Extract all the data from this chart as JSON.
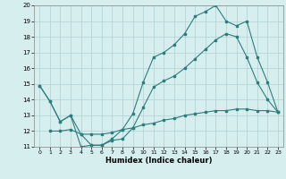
{
  "xlabel": "Humidex (Indice chaleur)",
  "xlim": [
    -0.5,
    23.5
  ],
  "ylim": [
    11,
    20
  ],
  "yticks": [
    11,
    12,
    13,
    14,
    15,
    16,
    17,
    18,
    19,
    20
  ],
  "xticks": [
    0,
    1,
    2,
    3,
    4,
    5,
    6,
    7,
    8,
    9,
    10,
    11,
    12,
    13,
    14,
    15,
    16,
    17,
    18,
    19,
    20,
    21,
    22,
    23
  ],
  "bg_color": "#d6eeee",
  "grid_color": "#b0d0d0",
  "line_color": "#2e7d7d",
  "line1_x": [
    0,
    1,
    2,
    3,
    4,
    5,
    6,
    7,
    8,
    9,
    10,
    11,
    12,
    13,
    14,
    15,
    16,
    17,
    18,
    19,
    20,
    21,
    22,
    23
  ],
  "line1_y": [
    14.9,
    13.9,
    12.6,
    13.0,
    11.8,
    11.1,
    11.1,
    11.5,
    12.1,
    13.1,
    15.1,
    16.7,
    17.0,
    17.5,
    18.2,
    19.3,
    19.6,
    20.0,
    19.0,
    18.7,
    19.0,
    16.7,
    15.1,
    13.2
  ],
  "line2_x": [
    0,
    1,
    2,
    3,
    4,
    5,
    6,
    7,
    8,
    9,
    10,
    11,
    12,
    13,
    14,
    15,
    16,
    17,
    18,
    19,
    20,
    21,
    22,
    23
  ],
  "line2_y": [
    14.9,
    13.9,
    12.6,
    13.0,
    11.0,
    11.1,
    11.1,
    11.4,
    11.5,
    12.2,
    13.5,
    14.8,
    15.2,
    15.5,
    16.0,
    16.6,
    17.2,
    17.8,
    18.2,
    18.0,
    16.7,
    15.1,
    14.0,
    13.2
  ],
  "line3_x": [
    1,
    2,
    3,
    4,
    5,
    6,
    7,
    8,
    9,
    10,
    11,
    12,
    13,
    14,
    15,
    16,
    17,
    18,
    19,
    20,
    21,
    22,
    23
  ],
  "line3_y": [
    12.0,
    12.0,
    12.1,
    11.8,
    11.8,
    11.8,
    11.9,
    12.1,
    12.2,
    12.4,
    12.5,
    12.7,
    12.8,
    13.0,
    13.1,
    13.2,
    13.3,
    13.3,
    13.4,
    13.4,
    13.3,
    13.3,
    13.2
  ]
}
